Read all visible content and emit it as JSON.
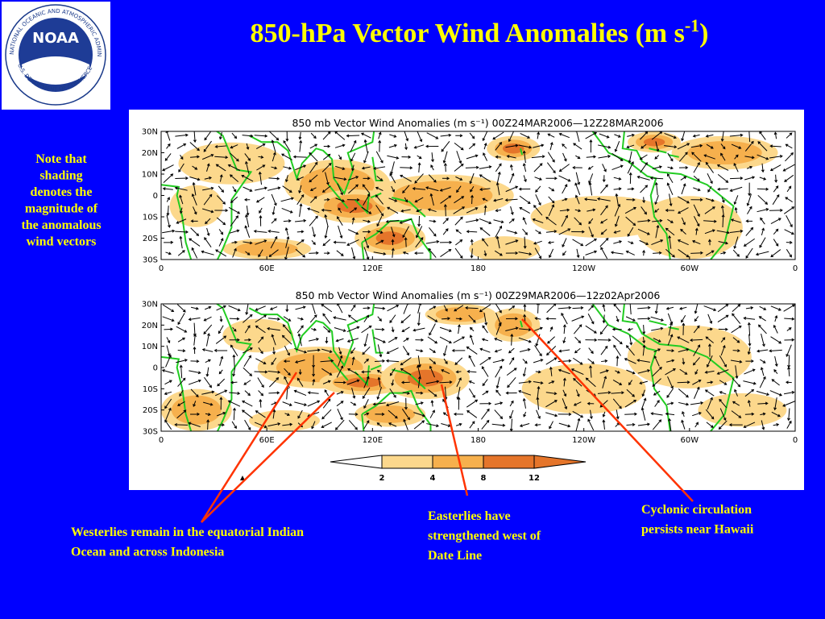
{
  "header": {
    "title": "850-hPa Vector Wind Anomalies  (m s",
    "title_superscript": "-1",
    "title_end": ")"
  },
  "logo": {
    "name": "NOAA",
    "ring_top": "NATIONAL OCEANIC AND ATMOSPHERIC ADMINISTRATION",
    "ring_bottom": "U.S. DEPARTMENT OF COMMERCE"
  },
  "note": [
    "Note that",
    "shading",
    "denotes the",
    "magnitude of",
    "the anomalous",
    "wind vectors"
  ],
  "panels": [
    {
      "title": "850 mb Vector Wind Anomalies (m s⁻¹) 00Z24MAR2006—12Z28MAR2006"
    },
    {
      "title": "850 mb Vector Wind Anomalies (m s⁻¹) 00Z29MAR2006—12z02Apr2006"
    }
  ],
  "lat_labels": [
    "30N",
    "20N",
    "10N",
    "0",
    "10S",
    "20S",
    "30S"
  ],
  "lon_labels": [
    "0",
    "60E",
    "120E",
    "180",
    "120W",
    "60W",
    "0"
  ],
  "colorbar": {
    "labels": [
      "2",
      "4",
      "8",
      "12"
    ]
  },
  "annotations": [
    {
      "lines": [
        "Westerlies remain in the equatorial Indian",
        "Ocean and across Indonesia"
      ]
    },
    {
      "lines": [
        "Easterlies have",
        "strengthened west of",
        "Date Line"
      ]
    },
    {
      "lines": [
        "Cyclonic circulation",
        "persists near Hawaii"
      ]
    }
  ]
}
